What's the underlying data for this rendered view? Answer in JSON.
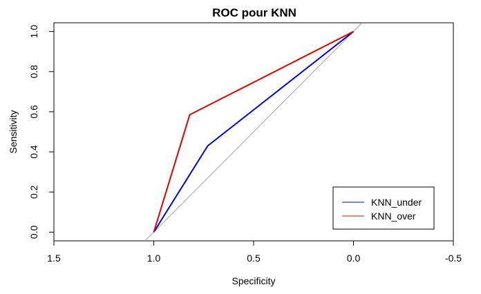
{
  "chart_data": {
    "type": "line",
    "title": "ROC pour KNN",
    "xlabel": "Specificity",
    "ylabel": "Sensitivity",
    "x_reversed": true,
    "xlim": [
      1.5,
      -0.5
    ],
    "ylim": [
      0.0,
      1.0
    ],
    "xticks": [
      1.5,
      1.0,
      0.5,
      0.0,
      -0.5
    ],
    "xtick_labels": [
      "1.5",
      "1.0",
      "0.5",
      "0.0",
      "-0.5"
    ],
    "yticks": [
      0.0,
      0.2,
      0.4,
      0.6,
      0.8,
      1.0
    ],
    "ytick_labels": [
      "0.0",
      "0.2",
      "0.4",
      "0.6",
      "0.8",
      "1.0"
    ],
    "grid": false,
    "legend_position": "bottom-right",
    "reference_line": {
      "color": "#a0a0a0",
      "points": [
        [
          1.0,
          0.0
        ],
        [
          0.0,
          1.0
        ]
      ]
    },
    "series": [
      {
        "name": "KNN_under",
        "color": "#0000cc",
        "x": [
          1.0,
          0.73,
          0.0
        ],
        "y": [
          0.0,
          0.43,
          1.0
        ]
      },
      {
        "name": "KNN_over",
        "color": "#dd0000",
        "x": [
          1.0,
          0.82,
          0.0
        ],
        "y": [
          0.0,
          0.585,
          1.0
        ]
      }
    ]
  }
}
